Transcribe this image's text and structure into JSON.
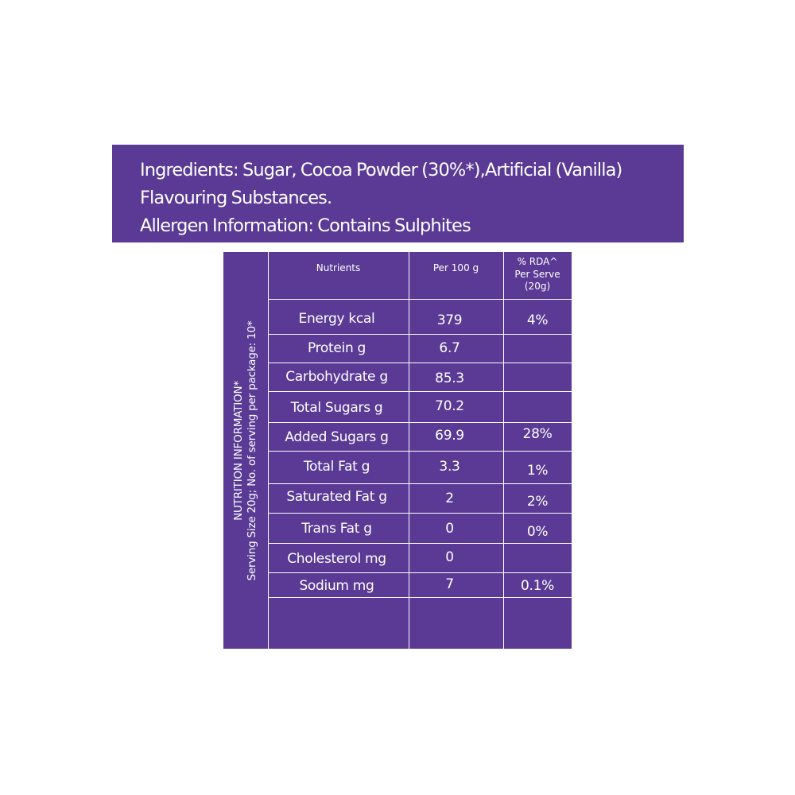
{
  "ingredients": {
    "line1": "Ingredients: Sugar, Cocoa Powder (30%*),Artificial (Vanilla)",
    "line2": "Flavouring Substances.",
    "line3": "Allergen Information: Contains Sulphites"
  },
  "nutrition": {
    "side_title": "NUTRITION INFORMATION*",
    "side_subtitle": "Serving Size 20g; No. of serving per package: 10*",
    "headers": {
      "nutrients": "Nutrients",
      "per100": "Per 100 g",
      "rda_line1": "% RDA^",
      "rda_line2": "Per Serve",
      "rda_line3": "(20g)"
    },
    "rows": [
      {
        "name": "Energy kcal",
        "per100": "379",
        "rda": "4%"
      },
      {
        "name": "Protein g",
        "per100": "6.7",
        "rda": ""
      },
      {
        "name": "Carbohydrate g",
        "per100": "85.3",
        "rda": ""
      },
      {
        "name": "Total Sugars g",
        "per100": "70.2",
        "rda": ""
      },
      {
        "name": "Added Sugars g",
        "per100": "69.9",
        "rda": "28%"
      },
      {
        "name": "Total Fat g",
        "per100": "3.3",
        "rda": "1%"
      },
      {
        "name": "Saturated Fat g",
        "per100": "2",
        "rda": "2%"
      },
      {
        "name": "Trans Fat g",
        "per100": "0",
        "rda": "0%"
      },
      {
        "name": "Cholesterol mg",
        "per100": "0",
        "rda": ""
      },
      {
        "name": "Sodium mg",
        "per100": "7",
        "rda": "0.1%"
      }
    ]
  }
}
